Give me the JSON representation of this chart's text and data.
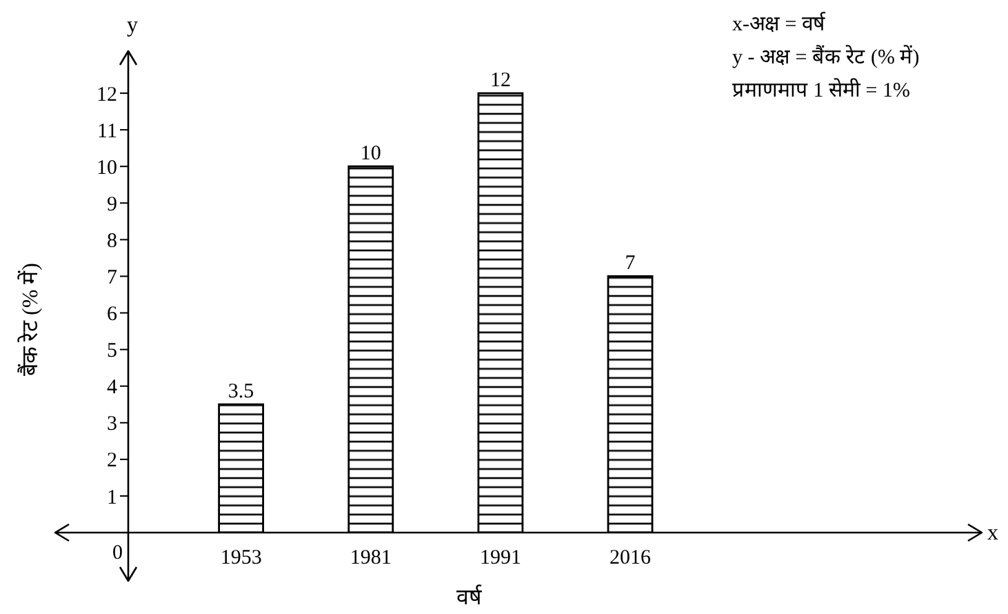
{
  "chart_data": {
    "type": "bar",
    "xlabel": "वर्ष",
    "ylabel": "बैंक रेट (% में)",
    "categories": [
      "1953",
      "1981",
      "1991",
      "2016"
    ],
    "values": [
      3.5,
      10,
      12,
      7
    ],
    "color": "#000000",
    "ylim": [
      0,
      13
    ],
    "yticks": [
      1,
      2,
      3,
      4,
      5,
      6,
      7,
      8,
      9,
      10,
      11,
      12
    ],
    "data_labels": true,
    "annotations": [
      "y",
      "x-अक्ष = वर्ष",
      "y - अक्ष = बैंक रेट (% में)",
      "प्रमाणमाप 1 सेमी = 1%",
      "x",
      "0"
    ]
  }
}
